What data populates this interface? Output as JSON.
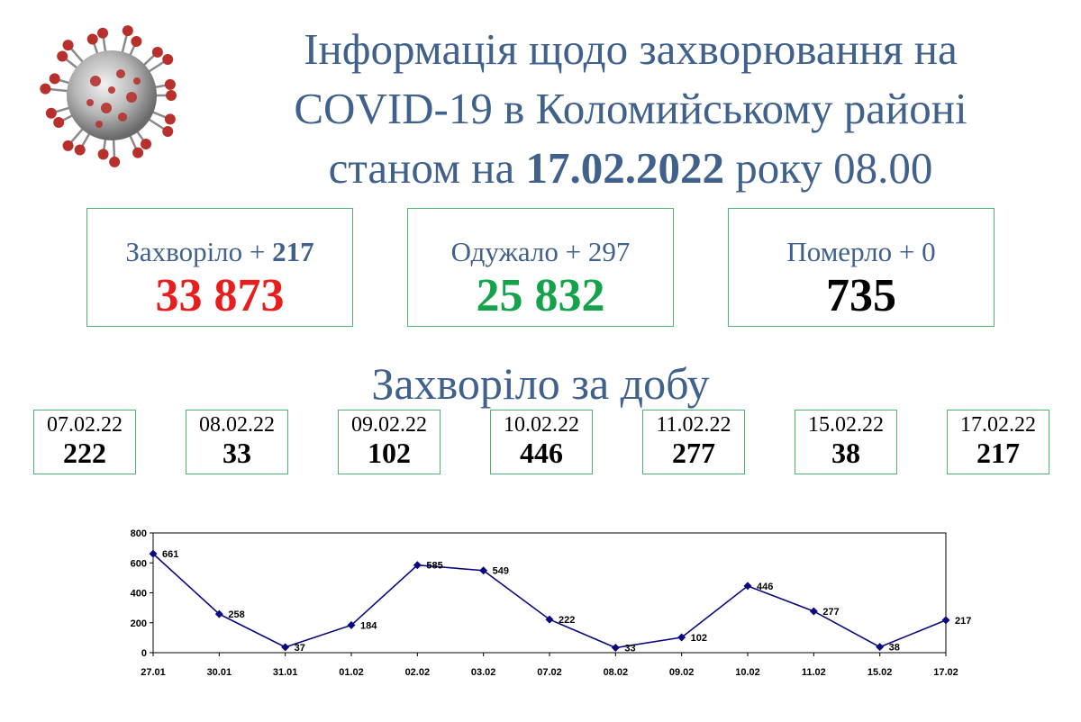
{
  "header": {
    "title_line1": "Інформація щодо захворювання на",
    "title_line2": "COVID-19 в Коломийському районі",
    "title_line3_prefix": "станом на ",
    "title_date": "17.02.2022",
    "title_line3_suffix": " року 08.00"
  },
  "stats": [
    {
      "label": "Захворіло + ",
      "delta": "217",
      "value": "33 873",
      "color": "#e81e1e"
    },
    {
      "label": "Одужало + ",
      "delta": "297",
      "value": "25 832",
      "color": "#14a24b"
    },
    {
      "label": "Померло + ",
      "delta": "0",
      "value": "735",
      "color": "#000000"
    }
  ],
  "daily_title": "Захворіло за добу",
  "daily": [
    {
      "date": "07.02.22",
      "value": "222"
    },
    {
      "date": "08.02.22",
      "value": "33"
    },
    {
      "date": "09.02.22",
      "value": "102"
    },
    {
      "date": "10.02.22",
      "value": "446"
    },
    {
      "date": "11.02.22",
      "value": "277"
    },
    {
      "date": "15.02.22",
      "value": "38"
    },
    {
      "date": "17.02.22",
      "value": "217"
    }
  ],
  "chart_data": {
    "type": "line",
    "title": "",
    "xlabel": "",
    "ylabel": "",
    "categories": [
      "27.01",
      "30.01",
      "31.01",
      "01.02",
      "02.02",
      "03.02",
      "07.02",
      "08.02",
      "09.02",
      "10.02",
      "11.02",
      "15.02",
      "17.02"
    ],
    "values": [
      661,
      258,
      37,
      184,
      585,
      549,
      222,
      33,
      102,
      446,
      277,
      38,
      217
    ],
    "ylim": [
      0,
      800
    ],
    "yticks": [
      0,
      200,
      400,
      600,
      800
    ],
    "grid": false,
    "legend": "none",
    "line_color": "#0a0a80",
    "marker": "diamond"
  }
}
